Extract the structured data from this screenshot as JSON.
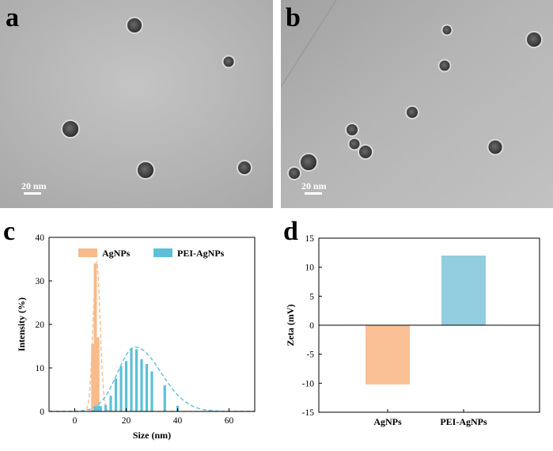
{
  "panels": {
    "a": {
      "letter": "a",
      "scale_bar": "20 nm"
    },
    "b": {
      "letter": "b",
      "scale_bar": "20 nm"
    },
    "c": {
      "letter": "c"
    },
    "d": {
      "letter": "d"
    }
  },
  "colors": {
    "agnps": "#f7bb8c",
    "pei_agnps": "#5cc0d8",
    "zeta_agnps": "#f9c096",
    "zeta_pei": "#93cde0"
  },
  "chart_data": [
    {
      "type": "bar",
      "panel": "c",
      "xlabel": "Size (nm)",
      "ylabel": "Intensity (%)",
      "xlim": [
        -10,
        70
      ],
      "ylim": [
        0,
        40
      ],
      "xticks": [
        "0",
        "20",
        "40",
        "60"
      ],
      "yticks": [
        "0",
        "10",
        "20",
        "30",
        "40"
      ],
      "legend": [
        "AgNPs",
        "PEI-AgNPs"
      ],
      "legend_position": "top",
      "series": [
        {
          "name": "AgNPs",
          "x": [
            6,
            7,
            8,
            9,
            10
          ],
          "values": [
            0.3,
            15.5,
            34,
            17,
            1.2
          ],
          "fit_peak": 34.5,
          "fit_center": 8.5
        },
        {
          "name": "PEI-AgNPs",
          "x": [
            7,
            8,
            9,
            10,
            12,
            14,
            16,
            18,
            20,
            22,
            24,
            26,
            28,
            30,
            35,
            40
          ],
          "values": [
            0.3,
            1.0,
            1.3,
            1.2,
            1.5,
            3.6,
            7.6,
            10.4,
            11.6,
            14.5,
            14.3,
            12.0,
            10.9,
            9.2,
            6.0,
            1.3
          ],
          "fit_peak": 14.8,
          "fit_center": 23.5
        }
      ]
    },
    {
      "type": "bar",
      "panel": "d",
      "xlabel": "",
      "ylabel": "Zeta (mV)",
      "ylim": [
        -15,
        15
      ],
      "yticks": [
        "-15",
        "-10",
        "-5",
        "0",
        "5",
        "10",
        "15"
      ],
      "categories": [
        "AgNPs",
        "PEI-AgNPs"
      ],
      "values": [
        -10.2,
        12.0
      ]
    }
  ]
}
